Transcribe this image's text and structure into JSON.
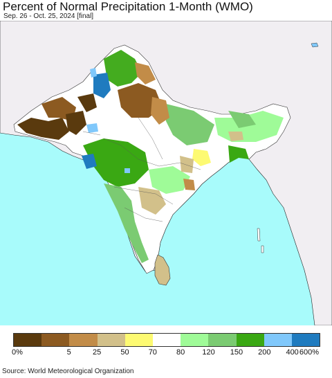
{
  "header": {
    "title": "Percent of Normal Precipitation 1-Month (WMO)",
    "subtitle": "Sep. 26 - Oct. 25, 2024 [final]"
  },
  "legend": {
    "colors": [
      "#5a3a0e",
      "#8c5a21",
      "#c28c48",
      "#d2c08a",
      "#fdfa72",
      "#ffffff",
      "#9ffb98",
      "#7bcb72",
      "#3aa813",
      "#80c8fb",
      "#1f7bbf"
    ],
    "labels": [
      "0%",
      "5",
      "25",
      "50",
      "70",
      "80",
      "120",
      "150",
      "200",
      "400",
      "600%"
    ]
  },
  "map": {
    "ocean_color": "#a8fbfb",
    "foreign_land_color": "#f1eef2",
    "region_name_icon": "south-asia-map"
  },
  "footer": {
    "source": "Source: World Meteorological Organization"
  }
}
